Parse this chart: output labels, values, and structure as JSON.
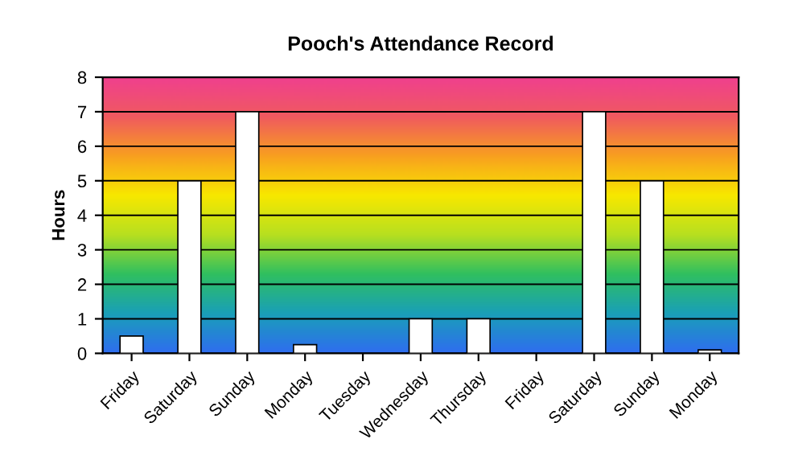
{
  "chart_data": {
    "type": "bar",
    "title": "Pooch's Attendance Record",
    "ylabel": "Hours",
    "categories": [
      "Friday",
      "Saturday",
      "Sunday",
      "Monday",
      "Tuesday",
      "Wednesday",
      "Thursday",
      "Friday",
      "Saturday",
      "Sunday",
      "Monday"
    ],
    "values": [
      0.5,
      5,
      7,
      0.25,
      0,
      1,
      1,
      0,
      7,
      5,
      0.1
    ],
    "color": "#ffffff",
    "ylim": [
      0,
      8
    ],
    "yticks": [
      0,
      1,
      2,
      3,
      4,
      5,
      6,
      7,
      8
    ],
    "grid": "y"
  }
}
